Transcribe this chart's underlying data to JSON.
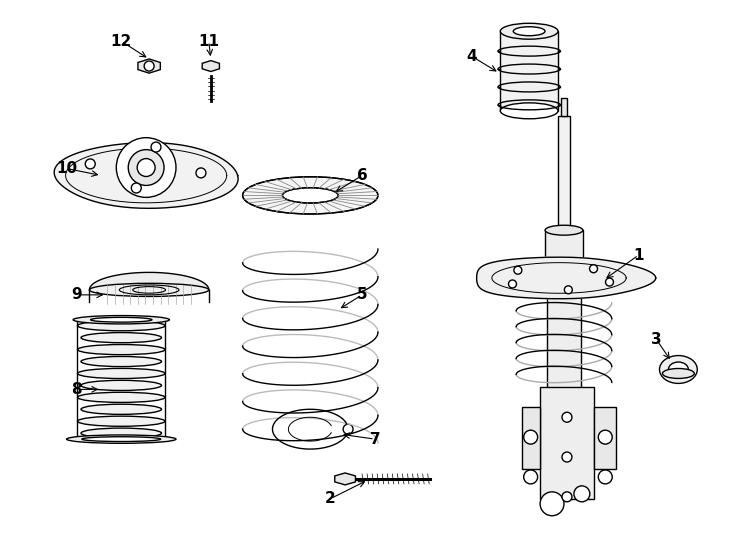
{
  "background_color": "#ffffff",
  "line_color": "#000000",
  "fig_width": 7.34,
  "fig_height": 5.4,
  "dpi": 100
}
